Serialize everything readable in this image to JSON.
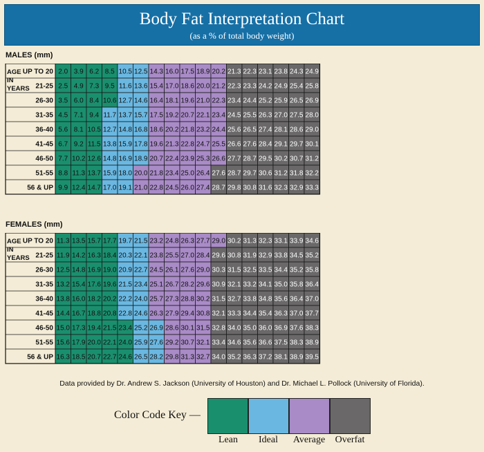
{
  "header": {
    "title": "Body Fat Interpretation Chart",
    "subtitle": "(as a % of total body weight)"
  },
  "colors": {
    "lean": "#1a8f6e",
    "ideal": "#6ab8e2",
    "average": "#a98bc7",
    "overfat": "#6a6868",
    "banner": "#1670a6"
  },
  "chart_data": [
    {
      "type": "table",
      "title": "MALES (mm)",
      "row_header_label": [
        "AGE",
        "IN",
        "YEARS"
      ],
      "row_labels": [
        "UP TO 20",
        "21-25",
        "26-30",
        "31-35",
        "36-40",
        "41-45",
        "46-50",
        "51-55",
        "56 & UP"
      ],
      "zone_starts": [
        [
          0,
          4,
          6,
          11
        ],
        [
          0,
          4,
          6,
          11
        ],
        [
          0,
          4,
          6,
          11
        ],
        [
          0,
          3,
          6,
          11
        ],
        [
          0,
          3,
          6,
          11
        ],
        [
          0,
          3,
          6,
          11
        ],
        [
          0,
          3,
          6,
          11
        ],
        [
          0,
          3,
          5,
          10
        ],
        [
          0,
          3,
          5,
          10
        ]
      ],
      "rows": [
        [
          2.0,
          3.9,
          6.2,
          8.5,
          10.5,
          12.5,
          14.3,
          16.0,
          17.5,
          18.9,
          20.2,
          21.3,
          22.3,
          23.1,
          23.8,
          24.3,
          24.9
        ],
        [
          2.5,
          4.9,
          7.3,
          9.5,
          11.6,
          13.6,
          15.4,
          17.0,
          18.6,
          20.0,
          21.2,
          22.3,
          23.3,
          24.2,
          24.9,
          25.4,
          25.8
        ],
        [
          3.5,
          6.0,
          8.4,
          10.6,
          12.7,
          14.6,
          16.4,
          18.1,
          19.6,
          21.0,
          22.3,
          23.4,
          24.4,
          25.2,
          25.9,
          26.5,
          26.9
        ],
        [
          4.5,
          7.1,
          9.4,
          11.7,
          13.7,
          15.7,
          17.5,
          19.2,
          20.7,
          22.1,
          23.4,
          24.5,
          25.5,
          26.3,
          27.0,
          27.5,
          28.0
        ],
        [
          5.6,
          8.1,
          10.5,
          12.7,
          14.8,
          16.8,
          18.6,
          20.2,
          21.8,
          23.2,
          24.4,
          25.6,
          26.5,
          27.4,
          28.1,
          28.6,
          29.0
        ],
        [
          6.7,
          9.2,
          11.5,
          13.8,
          15.9,
          17.8,
          19.6,
          21.3,
          22.8,
          24.7,
          25.5,
          26.6,
          27.6,
          28.4,
          29.1,
          29.7,
          30.1
        ],
        [
          7.7,
          10.2,
          12.6,
          14.8,
          16.9,
          18.9,
          20.7,
          22.4,
          23.9,
          25.3,
          26.6,
          27.7,
          28.7,
          29.5,
          30.2,
          30.7,
          31.2
        ],
        [
          8.8,
          11.3,
          13.7,
          15.9,
          18.0,
          20.0,
          21.8,
          23.4,
          25.0,
          26.4,
          27.6,
          28.7,
          29.7,
          30.6,
          31.2,
          31.8,
          32.2
        ],
        [
          9.9,
          12.4,
          14.7,
          17.0,
          19.1,
          21.0,
          22.8,
          24.5,
          26.0,
          27.4,
          28.7,
          29.8,
          30.8,
          31.6,
          32.3,
          32.9,
          33.3
        ]
      ]
    },
    {
      "type": "table",
      "title": "FEMALES (mm)",
      "row_header_label": [
        "AGE",
        "IN",
        "YEARS"
      ],
      "row_labels": [
        "UP TO 20",
        "21-25",
        "26-30",
        "31-35",
        "36-40",
        "41-45",
        "46-50",
        "51-55",
        "56 & UP"
      ],
      "zone_starts": [
        [
          0,
          4,
          6,
          11
        ],
        [
          0,
          4,
          6,
          10
        ],
        [
          0,
          4,
          6,
          10
        ],
        [
          0,
          4,
          6,
          10
        ],
        [
          0,
          4,
          6,
          10
        ],
        [
          0,
          4,
          6,
          10
        ],
        [
          0,
          5,
          7,
          10
        ],
        [
          0,
          5,
          7,
          10
        ],
        [
          0,
          5,
          7,
          10
        ]
      ],
      "rows": [
        [
          11.3,
          13.5,
          15.7,
          17.7,
          19.7,
          21.5,
          23.2,
          24.8,
          26.3,
          27.7,
          29.0,
          30.2,
          31.3,
          32.3,
          33.1,
          33.9,
          34.6
        ],
        [
          11.9,
          14.2,
          16.3,
          18.4,
          20.3,
          22.1,
          23.8,
          25.5,
          27.0,
          28.4,
          29.6,
          30.8,
          31.9,
          32.9,
          33.8,
          34.5,
          35.2
        ],
        [
          12.5,
          14.8,
          16.9,
          19.0,
          20.9,
          22.7,
          24.5,
          26.1,
          27.6,
          29.0,
          30.3,
          31.5,
          32.5,
          33.5,
          34.4,
          35.2,
          35.8
        ],
        [
          13.2,
          15.4,
          17.6,
          19.6,
          21.5,
          23.4,
          25.1,
          26.7,
          28.2,
          29.6,
          30.9,
          32.1,
          33.2,
          34.1,
          35.0,
          35.8,
          36.4
        ],
        [
          13.8,
          16.0,
          18.2,
          20.2,
          22.2,
          24.0,
          25.7,
          27.3,
          28.8,
          30.2,
          31.5,
          32.7,
          33.8,
          34.8,
          35.6,
          36.4,
          37.0
        ],
        [
          14.4,
          16.7,
          18.8,
          20.8,
          22.8,
          24.6,
          26.3,
          27.9,
          29.4,
          30.8,
          32.1,
          33.3,
          34.4,
          35.4,
          36.3,
          37.0,
          37.7
        ],
        [
          15.0,
          17.3,
          19.4,
          21.5,
          23.4,
          25.2,
          26.9,
          28.6,
          30.1,
          31.5,
          32.8,
          34.0,
          35.0,
          36.0,
          36.9,
          37.6,
          38.3
        ],
        [
          15.6,
          17.9,
          20.0,
          22.1,
          24.0,
          25.9,
          27.6,
          29.2,
          30.7,
          32.1,
          33.4,
          34.6,
          35.6,
          36.6,
          37.5,
          38.3,
          38.9
        ],
        [
          16.3,
          18.5,
          20.7,
          22.7,
          24.6,
          26.5,
          28.2,
          29.8,
          31.3,
          32.7,
          34.0,
          35.2,
          36.3,
          37.2,
          38.1,
          38.9,
          39.5
        ]
      ]
    }
  ],
  "credit": "Data provided by Dr. Andrew S. Jackson (University of Houston) and Dr. Michael L. Pollock (University of Florida).",
  "key": {
    "title": "Color Code Key —",
    "labels": [
      "Lean",
      "Ideal",
      "Average",
      "Overfat"
    ]
  }
}
